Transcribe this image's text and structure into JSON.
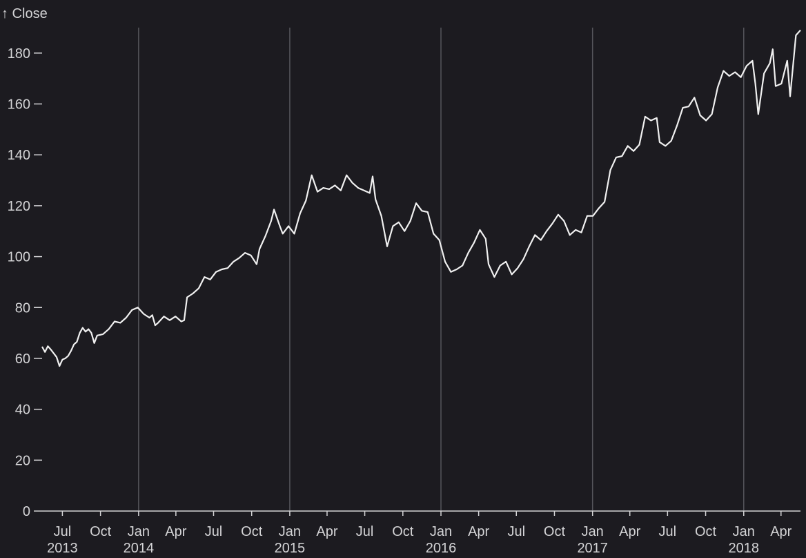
{
  "chart_data": {
    "type": "line",
    "ylabel": "↑ Close",
    "xlabel": "",
    "ylim": [
      0,
      190
    ],
    "xlim": [
      "2013-05-13",
      "2018-05-18"
    ],
    "y_ticks": [
      0,
      20,
      40,
      60,
      80,
      100,
      120,
      140,
      160,
      180
    ],
    "x_ticks": [
      {
        "date": "2013-07-01",
        "month": "Jul",
        "year": "2013"
      },
      {
        "date": "2013-10-01",
        "month": "Oct",
        "year": ""
      },
      {
        "date": "2014-01-01",
        "month": "Jan",
        "year": "2014"
      },
      {
        "date": "2014-04-01",
        "month": "Apr",
        "year": ""
      },
      {
        "date": "2014-07-01",
        "month": "Jul",
        "year": ""
      },
      {
        "date": "2014-10-01",
        "month": "Oct",
        "year": ""
      },
      {
        "date": "2015-01-01",
        "month": "Jan",
        "year": "2015"
      },
      {
        "date": "2015-04-01",
        "month": "Apr",
        "year": ""
      },
      {
        "date": "2015-07-01",
        "month": "Jul",
        "year": ""
      },
      {
        "date": "2015-10-01",
        "month": "Oct",
        "year": ""
      },
      {
        "date": "2016-01-01",
        "month": "Jan",
        "year": "2016"
      },
      {
        "date": "2016-04-01",
        "month": "Apr",
        "year": ""
      },
      {
        "date": "2016-07-01",
        "month": "Jul",
        "year": ""
      },
      {
        "date": "2016-10-01",
        "month": "Oct",
        "year": ""
      },
      {
        "date": "2017-01-01",
        "month": "Jan",
        "year": "2017"
      },
      {
        "date": "2017-04-01",
        "month": "Apr",
        "year": ""
      },
      {
        "date": "2017-07-01",
        "month": "Jul",
        "year": ""
      },
      {
        "date": "2017-10-01",
        "month": "Oct",
        "year": ""
      },
      {
        "date": "2018-01-01",
        "month": "Jan",
        "year": "2018"
      },
      {
        "date": "2018-04-01",
        "month": "Apr",
        "year": ""
      }
    ],
    "year_gridlines": [
      "2014-01-01",
      "2015-01-01",
      "2016-01-01",
      "2017-01-01",
      "2018-01-01"
    ],
    "grid": "vertical lines at year boundaries",
    "colors": {
      "background": "#1c1b20",
      "line": "#f0f0f0",
      "text": "#d4d4d6",
      "grid": "#55555b",
      "axis": "#d4d4d6"
    },
    "series": [
      {
        "points": [
          [
            "2013-05-13",
            64.6
          ],
          [
            "2013-05-20",
            62.5
          ],
          [
            "2013-05-27",
            64.8
          ],
          [
            "2013-06-03",
            63.5
          ],
          [
            "2013-06-10",
            62.0
          ],
          [
            "2013-06-17",
            60.5
          ],
          [
            "2013-06-24",
            57.0
          ],
          [
            "2013-07-01",
            59.5
          ],
          [
            "2013-07-08",
            60.0
          ],
          [
            "2013-07-15",
            61.0
          ],
          [
            "2013-07-22",
            63.0
          ],
          [
            "2013-07-29",
            65.5
          ],
          [
            "2013-08-05",
            66.5
          ],
          [
            "2013-08-12",
            70.0
          ],
          [
            "2013-08-19",
            72.0
          ],
          [
            "2013-08-26",
            70.5
          ],
          [
            "2013-09-02",
            71.5
          ],
          [
            "2013-09-09",
            70.0
          ],
          [
            "2013-09-16",
            66.0
          ],
          [
            "2013-09-23",
            69.0
          ],
          [
            "2013-10-07",
            69.5
          ],
          [
            "2013-10-21",
            71.5
          ],
          [
            "2013-11-04",
            74.5
          ],
          [
            "2013-11-18",
            74.0
          ],
          [
            "2013-12-02",
            76.0
          ],
          [
            "2013-12-16",
            79.0
          ],
          [
            "2013-12-30",
            80.0
          ],
          [
            "2014-01-13",
            77.5
          ],
          [
            "2014-01-27",
            76.0
          ],
          [
            "2014-02-03",
            77.0
          ],
          [
            "2014-02-10",
            73.0
          ],
          [
            "2014-02-17",
            74.0
          ],
          [
            "2014-03-03",
            76.5
          ],
          [
            "2014-03-17",
            75.0
          ],
          [
            "2014-03-31",
            76.5
          ],
          [
            "2014-04-14",
            74.5
          ],
          [
            "2014-04-21",
            75.0
          ],
          [
            "2014-04-28",
            84.0
          ],
          [
            "2014-05-12",
            85.5
          ],
          [
            "2014-05-26",
            87.5
          ],
          [
            "2014-06-09",
            92.0
          ],
          [
            "2014-06-23",
            91.0
          ],
          [
            "2014-07-07",
            94.0
          ],
          [
            "2014-07-21",
            95.0
          ],
          [
            "2014-08-04",
            95.5
          ],
          [
            "2014-08-18",
            98.0
          ],
          [
            "2014-09-01",
            99.5
          ],
          [
            "2014-09-15",
            101.5
          ],
          [
            "2014-09-29",
            100.5
          ],
          [
            "2014-10-13",
            97.0
          ],
          [
            "2014-10-20",
            103.0
          ],
          [
            "2014-11-03",
            108.0
          ],
          [
            "2014-11-17",
            114.0
          ],
          [
            "2014-11-24",
            118.5
          ],
          [
            "2014-12-08",
            112.0
          ],
          [
            "2014-12-15",
            109.0
          ],
          [
            "2014-12-29",
            112.0
          ],
          [
            "2015-01-12",
            109.0
          ],
          [
            "2015-01-26",
            117.0
          ],
          [
            "2015-02-09",
            122.0
          ],
          [
            "2015-02-23",
            132.0
          ],
          [
            "2015-03-09",
            125.5
          ],
          [
            "2015-03-23",
            127.0
          ],
          [
            "2015-04-06",
            126.5
          ],
          [
            "2015-04-20",
            128.0
          ],
          [
            "2015-05-04",
            126.0
          ],
          [
            "2015-05-18",
            132.0
          ],
          [
            "2015-06-01",
            129.0
          ],
          [
            "2015-06-15",
            127.0
          ],
          [
            "2015-06-29",
            126.0
          ],
          [
            "2015-07-13",
            125.0
          ],
          [
            "2015-07-20",
            131.5
          ],
          [
            "2015-07-27",
            122.5
          ],
          [
            "2015-08-10",
            116.0
          ],
          [
            "2015-08-24",
            104.0
          ],
          [
            "2015-09-07",
            112.0
          ],
          [
            "2015-09-21",
            113.5
          ],
          [
            "2015-10-05",
            110.0
          ],
          [
            "2015-10-19",
            114.0
          ],
          [
            "2015-11-02",
            121.0
          ],
          [
            "2015-11-16",
            118.0
          ],
          [
            "2015-11-30",
            117.5
          ],
          [
            "2015-12-14",
            109.0
          ],
          [
            "2015-12-28",
            106.5
          ],
          [
            "2016-01-11",
            98.0
          ],
          [
            "2016-01-25",
            94.0
          ],
          [
            "2016-02-08",
            95.0
          ],
          [
            "2016-02-22",
            96.5
          ],
          [
            "2016-03-07",
            101.5
          ],
          [
            "2016-03-21",
            105.5
          ],
          [
            "2016-04-04",
            110.5
          ],
          [
            "2016-04-18",
            107.0
          ],
          [
            "2016-04-25",
            97.0
          ],
          [
            "2016-05-09",
            92.0
          ],
          [
            "2016-05-23",
            96.5
          ],
          [
            "2016-06-06",
            98.0
          ],
          [
            "2016-06-20",
            93.0
          ],
          [
            "2016-07-04",
            95.5
          ],
          [
            "2016-07-18",
            99.0
          ],
          [
            "2016-08-01",
            104.0
          ],
          [
            "2016-08-15",
            108.5
          ],
          [
            "2016-08-29",
            106.5
          ],
          [
            "2016-09-12",
            110.0
          ],
          [
            "2016-09-26",
            113.0
          ],
          [
            "2016-10-10",
            116.5
          ],
          [
            "2016-10-24",
            114.0
          ],
          [
            "2016-11-07",
            108.5
          ],
          [
            "2016-11-21",
            110.5
          ],
          [
            "2016-12-05",
            109.5
          ],
          [
            "2016-12-19",
            116.0
          ],
          [
            "2017-01-02",
            116.0
          ],
          [
            "2017-01-16",
            119.0
          ],
          [
            "2017-01-30",
            121.5
          ],
          [
            "2017-02-13",
            134.0
          ],
          [
            "2017-02-27",
            139.0
          ],
          [
            "2017-03-13",
            139.5
          ],
          [
            "2017-03-27",
            143.5
          ],
          [
            "2017-04-10",
            141.5
          ],
          [
            "2017-04-24",
            144.0
          ],
          [
            "2017-05-08",
            155.0
          ],
          [
            "2017-05-22",
            153.5
          ],
          [
            "2017-06-05",
            154.5
          ],
          [
            "2017-06-12",
            145.0
          ],
          [
            "2017-06-26",
            143.5
          ],
          [
            "2017-07-10",
            145.5
          ],
          [
            "2017-07-24",
            151.5
          ],
          [
            "2017-08-07",
            158.5
          ],
          [
            "2017-08-21",
            159.0
          ],
          [
            "2017-09-04",
            162.5
          ],
          [
            "2017-09-18",
            155.5
          ],
          [
            "2017-10-02",
            153.5
          ],
          [
            "2017-10-16",
            156.0
          ],
          [
            "2017-10-30",
            166.5
          ],
          [
            "2017-11-13",
            173.0
          ],
          [
            "2017-11-27",
            171.0
          ],
          [
            "2017-12-11",
            172.5
          ],
          [
            "2017-12-25",
            170.5
          ],
          [
            "2018-01-08",
            175.0
          ],
          [
            "2018-01-22",
            177.0
          ],
          [
            "2018-01-29",
            168.0
          ],
          [
            "2018-02-05",
            156.0
          ],
          [
            "2018-02-19",
            172.0
          ],
          [
            "2018-03-05",
            176.0
          ],
          [
            "2018-03-12",
            181.5
          ],
          [
            "2018-03-19",
            167.0
          ],
          [
            "2018-04-02",
            168.0
          ],
          [
            "2018-04-16",
            177.0
          ],
          [
            "2018-04-23",
            163.0
          ],
          [
            "2018-04-30",
            175.0
          ],
          [
            "2018-05-07",
            187.0
          ],
          [
            "2018-05-18",
            189.0
          ]
        ]
      }
    ]
  }
}
